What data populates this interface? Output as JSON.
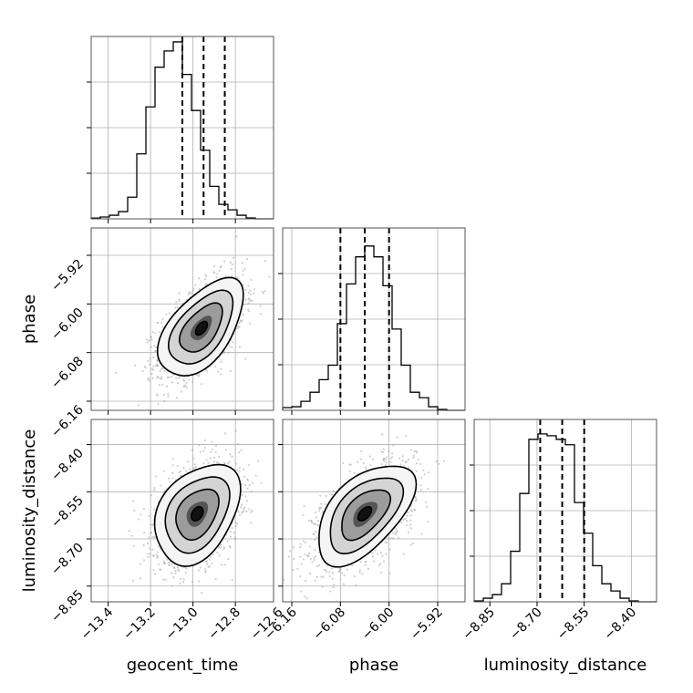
{
  "chart_data": {
    "type": "corner",
    "parameters": [
      "geocent_time",
      "phase",
      "luminosity_distance"
    ],
    "grid": true,
    "quantiles_style": "dashed",
    "parameter_details": {
      "geocent_time": {
        "range": [
          -13.48,
          -12.62
        ],
        "ticks": [
          -13.4,
          -13.2,
          -13.0,
          -12.8,
          -12.6
        ],
        "tick_labels": [
          "−13.4",
          "−13.2",
          "−13.0",
          "−12.8",
          "−12.6"
        ],
        "quantiles": [
          -13.05,
          -12.95,
          -12.85
        ],
        "hist_bin_edges": [
          -13.48,
          -13.437,
          -13.394,
          -13.351,
          -13.308,
          -13.265,
          -13.222,
          -13.179,
          -13.136,
          -13.093,
          -13.05,
          -13.007,
          -12.964,
          -12.921,
          -12.878,
          -12.835,
          -12.792,
          -12.749,
          -12.706,
          -12.663,
          -12.62
        ],
        "hist_heights": [
          0.004,
          0.01,
          0.02,
          0.04,
          0.12,
          0.36,
          0.62,
          0.84,
          0.93,
          0.98,
          0.8,
          0.6,
          0.38,
          0.18,
          0.08,
          0.05,
          0.02,
          0.005,
          0.0,
          0.0
        ]
      },
      "phase": {
        "range": [
          -6.175,
          -5.875
        ],
        "ticks": [
          -6.16,
          -6.08,
          -6.0,
          -5.92
        ],
        "tick_labels": [
          "−6.16",
          "−6.08",
          "−6.00",
          "−5.92"
        ],
        "quantiles": [
          -6.08,
          -6.04,
          -6.0
        ],
        "hist_bin_edges": [
          -6.175,
          -6.16,
          -6.145,
          -6.13,
          -6.115,
          -6.1,
          -6.085,
          -6.07,
          -6.055,
          -6.04,
          -6.025,
          -6.01,
          -5.995,
          -5.98,
          -5.965,
          -5.95,
          -5.935,
          -5.92,
          -5.905,
          -5.89,
          -5.875
        ],
        "hist_heights": [
          0.015,
          0.02,
          0.05,
          0.1,
          0.17,
          0.25,
          0.48,
          0.7,
          0.85,
          0.91,
          0.85,
          0.69,
          0.45,
          0.25,
          0.1,
          0.07,
          0.02,
          0.005,
          0.0,
          0.0
        ]
      },
      "luminosity_distance": {
        "range": [
          -8.9,
          -8.32
        ],
        "ticks": [
          -8.85,
          -8.7,
          -8.55,
          -8.4
        ],
        "tick_labels": [
          "−8.85",
          "−8.70",
          "−8.55",
          "−8.40"
        ],
        "quantiles": [
          -8.69,
          -8.62,
          -8.55
        ],
        "hist_bin_edges": [
          -8.9,
          -8.871,
          -8.842,
          -8.813,
          -8.784,
          -8.755,
          -8.726,
          -8.697,
          -8.668,
          -8.639,
          -8.61,
          -8.581,
          -8.552,
          -8.523,
          -8.494,
          -8.465,
          -8.436,
          -8.407,
          -8.378,
          -8.349,
          -8.32
        ],
        "hist_heights": [
          0.005,
          0.02,
          0.04,
          0.1,
          0.28,
          0.6,
          0.9,
          0.93,
          0.92,
          0.9,
          0.87,
          0.55,
          0.38,
          0.2,
          0.1,
          0.06,
          0.02,
          0.005,
          0.0,
          0.0
        ]
      }
    },
    "correlations": [
      {
        "x": "geocent_time",
        "y": "phase",
        "center": [
          -12.96,
          -6.04
        ],
        "sd": [
          0.1,
          0.04
        ],
        "rho": 0.55
      },
      {
        "x": "geocent_time",
        "y": "luminosity_distance",
        "center": [
          -12.98,
          -8.62
        ],
        "sd": [
          0.1,
          0.08
        ],
        "rho": 0.35
      },
      {
        "x": "phase",
        "y": "luminosity_distance",
        "center": [
          -6.04,
          -8.62
        ],
        "sd": [
          0.04,
          0.08
        ],
        "rho": 0.55
      }
    ],
    "contour_levels_sigma": [
      0.5,
      1.0,
      1.5,
      2.0
    ]
  }
}
